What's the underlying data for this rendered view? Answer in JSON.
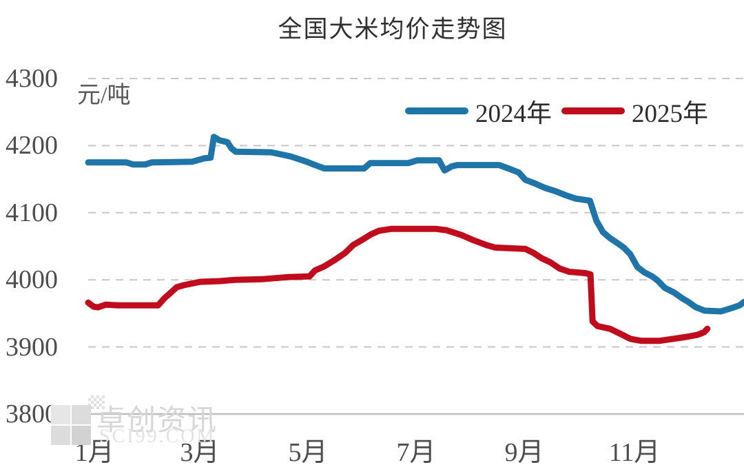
{
  "title": "全国大米均价走势图",
  "unit_label": "元/吨",
  "legend": [
    {
      "label": "2024年",
      "color": "#1f74a8"
    },
    {
      "label": "2025年",
      "color": "#c00d1e"
    }
  ],
  "watermark": {
    "name": "卓创资讯",
    "site": "SCI99.COM"
  },
  "chart_data": {
    "type": "line",
    "title": "全国大米均价走势图",
    "ylabel": "元/吨",
    "xlabel": "",
    "ylim": [
      3800,
      4300
    ],
    "y_ticks": [
      4300,
      4200,
      4100,
      4000,
      3900,
      3800
    ],
    "x_ticks": [
      "1月",
      "3月",
      "5月",
      "7月",
      "9月",
      "11月"
    ],
    "x_axis_note": "x units are months, 1.0 = Jan 1 through 13.0 = Dec 31",
    "grid": "horizontal dashed gridlines, solid bottom axis line",
    "grid_color": "#c7c7c7",
    "axis_line_color": "#bdbdbd",
    "legend_position": "top-right inside plot",
    "series": [
      {
        "name": "2024年",
        "color": "#1f74a8",
        "points": [
          [
            1.0,
            4175
          ],
          [
            1.7,
            4175
          ],
          [
            1.82,
            4172
          ],
          [
            2.05,
            4172
          ],
          [
            2.16,
            4175
          ],
          [
            2.9,
            4176
          ],
          [
            3.12,
            4181
          ],
          [
            3.24,
            4182
          ],
          [
            3.3,
            4213
          ],
          [
            3.4,
            4208
          ],
          [
            3.55,
            4205
          ],
          [
            3.62,
            4196
          ],
          [
            3.7,
            4191
          ],
          [
            4.35,
            4190
          ],
          [
            4.7,
            4184
          ],
          [
            5.0,
            4176
          ],
          [
            5.12,
            4172
          ],
          [
            5.32,
            4166
          ],
          [
            6.05,
            4166
          ],
          [
            6.16,
            4174
          ],
          [
            6.86,
            4174
          ],
          [
            7.02,
            4178
          ],
          [
            7.42,
            4178
          ],
          [
            7.52,
            4163
          ],
          [
            7.65,
            4169
          ],
          [
            7.75,
            4171
          ],
          [
            8.52,
            4171
          ],
          [
            8.72,
            4165
          ],
          [
            8.88,
            4160
          ],
          [
            9.0,
            4149
          ],
          [
            9.16,
            4144
          ],
          [
            9.36,
            4137
          ],
          [
            9.55,
            4132
          ],
          [
            9.74,
            4126
          ],
          [
            9.92,
            4121
          ],
          [
            10.18,
            4118
          ],
          [
            10.3,
            4088
          ],
          [
            10.42,
            4071
          ],
          [
            10.55,
            4062
          ],
          [
            10.68,
            4055
          ],
          [
            10.8,
            4048
          ],
          [
            10.92,
            4038
          ],
          [
            11.05,
            4019
          ],
          [
            11.18,
            4011
          ],
          [
            11.32,
            4005
          ],
          [
            11.42,
            3999
          ],
          [
            11.55,
            3988
          ],
          [
            11.72,
            3981
          ],
          [
            11.88,
            3972
          ],
          [
            11.98,
            3967
          ],
          [
            12.12,
            3959
          ],
          [
            12.28,
            3954
          ],
          [
            12.58,
            3953
          ],
          [
            12.78,
            3958
          ],
          [
            12.92,
            3962
          ],
          [
            13.0,
            3967
          ]
        ]
      },
      {
        "name": "2025年",
        "color": "#c00d1e",
        "points": [
          [
            1.0,
            3966
          ],
          [
            1.1,
            3960
          ],
          [
            1.18,
            3959
          ],
          [
            1.32,
            3963
          ],
          [
            1.55,
            3962
          ],
          [
            2.28,
            3962
          ],
          [
            2.4,
            3973
          ],
          [
            2.5,
            3980
          ],
          [
            2.62,
            3989
          ],
          [
            2.75,
            3992
          ],
          [
            3.05,
            3997
          ],
          [
            3.4,
            3998
          ],
          [
            3.7,
            4000
          ],
          [
            4.2,
            4001
          ],
          [
            4.65,
            4004
          ],
          [
            5.05,
            4005
          ],
          [
            5.15,
            4014
          ],
          [
            5.32,
            4020
          ],
          [
            5.52,
            4030
          ],
          [
            5.7,
            4040
          ],
          [
            5.85,
            4052
          ],
          [
            6.02,
            4060
          ],
          [
            6.18,
            4068
          ],
          [
            6.32,
            4073
          ],
          [
            6.55,
            4076
          ],
          [
            7.35,
            4076
          ],
          [
            7.55,
            4074
          ],
          [
            7.82,
            4067
          ],
          [
            8.05,
            4059
          ],
          [
            8.28,
            4052
          ],
          [
            8.45,
            4048
          ],
          [
            9.0,
            4046
          ],
          [
            9.15,
            4040
          ],
          [
            9.3,
            4032
          ],
          [
            9.46,
            4026
          ],
          [
            9.62,
            4017
          ],
          [
            9.8,
            4012
          ],
          [
            10.1,
            4010
          ],
          [
            10.19,
            4008
          ],
          [
            10.23,
            3938
          ],
          [
            10.32,
            3931
          ],
          [
            10.55,
            3927
          ],
          [
            10.75,
            3919
          ],
          [
            10.92,
            3912
          ],
          [
            11.12,
            3909
          ],
          [
            11.45,
            3909
          ],
          [
            11.7,
            3912
          ],
          [
            11.95,
            3915
          ],
          [
            12.15,
            3918
          ],
          [
            12.27,
            3922
          ],
          [
            12.33,
            3927
          ]
        ]
      }
    ]
  }
}
